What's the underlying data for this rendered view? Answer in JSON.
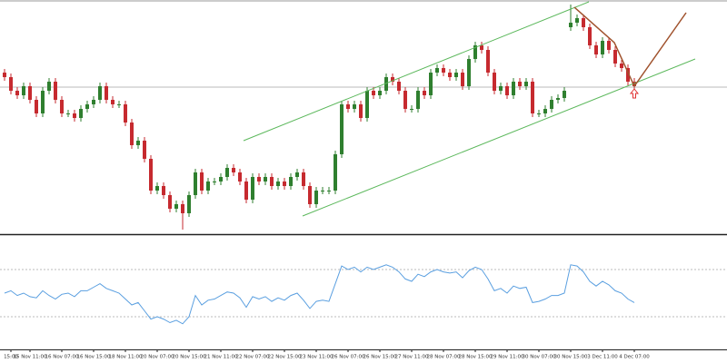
{
  "chart_data": [
    {
      "type": "candlestick",
      "categories": [
        null,
        "15:00",
        null,
        null,
        "15 Nov 11:00",
        null,
        null,
        null,
        null,
        "16 Nov 07:00",
        null,
        null,
        null,
        null,
        "16 Nov 15:00",
        null,
        null,
        null,
        null,
        "18 Nov 11:00",
        null,
        null,
        null,
        null,
        "20 Nov 07:00",
        null,
        null,
        null,
        null,
        "20 Nov 15:00",
        null,
        null,
        null,
        null,
        "21 Nov 11:00",
        null,
        null,
        null,
        null,
        "22 Nov 07:00",
        null,
        null,
        null,
        null,
        "22 Nov 15:00",
        null,
        null,
        null,
        null,
        "23 Nov 11:00",
        null,
        null,
        null,
        null,
        "26 Nov 07:00",
        null,
        null,
        null,
        null,
        "26 Nov 15:00",
        null,
        null,
        null,
        null,
        "27 Nov 11:00",
        null,
        null,
        null,
        null,
        "28 Nov 07:00",
        null,
        null,
        null,
        null,
        "28 Nov 15:00",
        null,
        null,
        null,
        null,
        "29 Nov 11:00",
        null,
        null,
        null,
        null,
        "30 Nov 07:00",
        null,
        null,
        null,
        null,
        "30 Nov 15:00",
        null,
        null,
        null,
        null,
        "3 Dec 11:00",
        null,
        null,
        null,
        null,
        "4 Dec 07:00"
      ],
      "open": [
        178,
        173,
        158,
        153,
        163,
        148,
        133,
        158,
        168,
        148,
        133,
        133,
        128,
        138,
        143,
        148,
        163,
        148,
        143,
        143,
        123,
        98,
        103,
        83,
        48,
        53,
        43,
        28,
        33,
        23,
        43,
        68,
        48,
        58,
        58,
        63,
        73,
        68,
        58,
        38,
        63,
        58,
        63,
        53,
        58,
        53,
        63,
        68,
        53,
        33,
        48,
        48,
        48,
        88,
        143,
        138,
        143,
        128,
        158,
        153,
        158,
        173,
        168,
        158,
        138,
        138,
        158,
        153,
        178,
        183,
        178,
        173,
        178,
        163,
        193,
        208,
        203,
        178,
        158,
        163,
        153,
        168,
        163,
        168,
        133,
        133,
        138,
        148,
        150,
        228,
        233,
        238,
        228,
        208,
        198,
        213,
        203,
        188,
        183,
        168
      ],
      "high": [
        182,
        177,
        162,
        167,
        167,
        152,
        162,
        172,
        172,
        152,
        137,
        137,
        142,
        147,
        152,
        167,
        167,
        152,
        147,
        147,
        127,
        107,
        107,
        87,
        57,
        57,
        47,
        37,
        37,
        47,
        72,
        72,
        62,
        62,
        67,
        77,
        77,
        72,
        62,
        67,
        67,
        67,
        67,
        62,
        62,
        67,
        72,
        72,
        57,
        52,
        52,
        52,
        92,
        147,
        147,
        147,
        147,
        162,
        162,
        162,
        177,
        177,
        172,
        162,
        142,
        162,
        162,
        182,
        187,
        187,
        182,
        182,
        182,
        197,
        212,
        212,
        207,
        182,
        167,
        167,
        172,
        172,
        172,
        172,
        137,
        142,
        152,
        154,
        162,
        253,
        242,
        242,
        232,
        212,
        217,
        217,
        207,
        192,
        187,
        172
      ],
      "low": [
        169,
        154,
        149,
        149,
        144,
        129,
        129,
        154,
        144,
        129,
        129,
        124,
        124,
        134,
        139,
        144,
        144,
        139,
        139,
        119,
        94,
        94,
        79,
        44,
        44,
        39,
        24,
        24,
        5,
        19,
        39,
        44,
        44,
        54,
        54,
        59,
        64,
        54,
        34,
        34,
        54,
        54,
        49,
        49,
        49,
        49,
        59,
        49,
        29,
        29,
        44,
        44,
        44,
        84,
        134,
        134,
        124,
        124,
        149,
        149,
        154,
        164,
        154,
        134,
        134,
        134,
        149,
        149,
        174,
        174,
        169,
        169,
        159,
        159,
        189,
        199,
        174,
        154,
        154,
        149,
        149,
        159,
        159,
        129,
        129,
        129,
        134,
        144,
        146,
        224,
        229,
        224,
        204,
        194,
        194,
        199,
        184,
        179,
        164,
        159
      ],
      "close": [
        173,
        158,
        153,
        163,
        148,
        133,
        158,
        168,
        148,
        133,
        133,
        128,
        138,
        143,
        148,
        163,
        148,
        143,
        143,
        123,
        98,
        103,
        83,
        48,
        53,
        43,
        28,
        33,
        23,
        43,
        68,
        48,
        58,
        58,
        63,
        73,
        68,
        58,
        38,
        63,
        58,
        63,
        53,
        58,
        53,
        63,
        68,
        53,
        33,
        48,
        48,
        48,
        88,
        143,
        138,
        143,
        128,
        158,
        153,
        158,
        173,
        168,
        158,
        138,
        138,
        158,
        153,
        178,
        183,
        178,
        173,
        178,
        163,
        193,
        208,
        203,
        178,
        158,
        163,
        153,
        168,
        163,
        168,
        133,
        133,
        138,
        148,
        150,
        158,
        233,
        238,
        228,
        208,
        198,
        213,
        203,
        188,
        183,
        168,
        163
      ],
      "up_color": "#2f7f2f",
      "down_color": "#c62a2f",
      "ylim": [
        0,
        258
      ],
      "price_line": 162
    },
    {
      "type": "line",
      "color": "#5a9fe0",
      "values": [
        50,
        52,
        48,
        50,
        47,
        46,
        52,
        48,
        45,
        49,
        50,
        47,
        52,
        52,
        55,
        58,
        54,
        52,
        50,
        45,
        40,
        42,
        35,
        28,
        30,
        28,
        25,
        27,
        24,
        30,
        48,
        40,
        44,
        45,
        48,
        51,
        50,
        46,
        38,
        47,
        45,
        47,
        43,
        46,
        44,
        48,
        50,
        44,
        37,
        43,
        44,
        43,
        58,
        73,
        70,
        72,
        68,
        72,
        70,
        72,
        74,
        72,
        68,
        62,
        60,
        66,
        64,
        68,
        70,
        68,
        67,
        68,
        63,
        69,
        72,
        70,
        62,
        52,
        54,
        50,
        56,
        54,
        55,
        42,
        43,
        45,
        48,
        48,
        50,
        74,
        73,
        68,
        60,
        56,
        60,
        57,
        52,
        50,
        45,
        42
      ],
      "ylim": [
        0,
        100
      ],
      "levels": [
        30,
        70
      ]
    }
  ]
}
